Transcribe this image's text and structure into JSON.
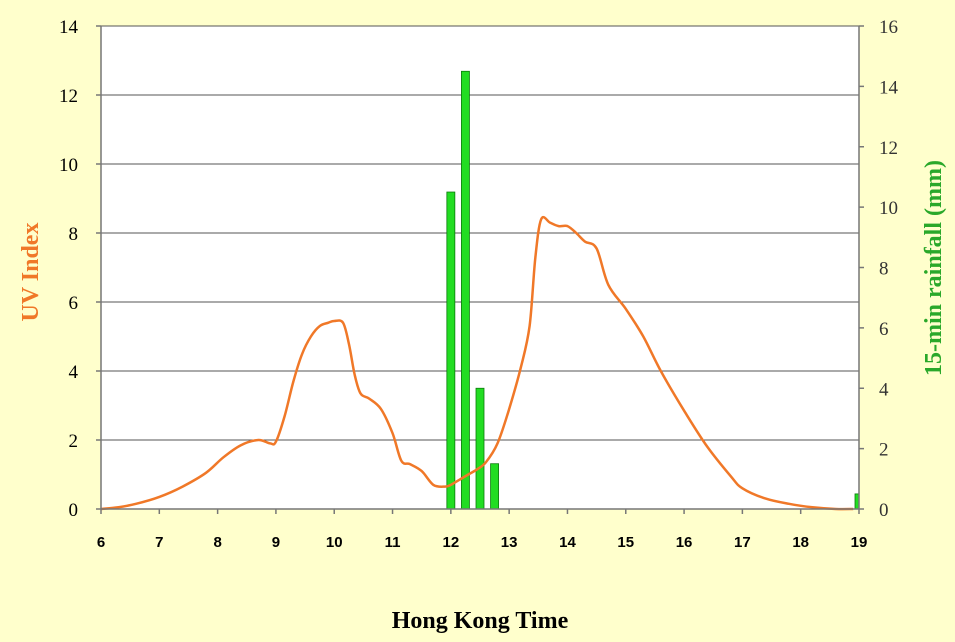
{
  "chart_data": {
    "type": "bar+line",
    "xlabel": "Hong Kong Time",
    "ylabel_left": "UV Index",
    "ylabel_right": "15-min rainfall (mm)",
    "x_ticks": [
      "6",
      "7",
      "8",
      "9",
      "10",
      "11",
      "12",
      "13",
      "14",
      "15",
      "16",
      "17",
      "18",
      "19"
    ],
    "xlim": [
      6,
      19
    ],
    "ylim_left": [
      0,
      14
    ],
    "y_ticks_left": [
      "0",
      "2",
      "4",
      "6",
      "8",
      "10",
      "12",
      "14"
    ],
    "ylim_right": [
      0,
      16
    ],
    "y_ticks_right": [
      "0",
      "2",
      "4",
      "6",
      "8",
      "10",
      "12",
      "14",
      "16"
    ],
    "grid": true,
    "colors": {
      "uv_line": "#f07828",
      "rain_bar": "#22dd22",
      "rain_bar_edge": "#0a7a0a",
      "left_title": "#f07828",
      "right_title": "#2aa82a",
      "plot_bg": "#ffffff",
      "page_bg": "#ffffcc"
    },
    "uv_series": {
      "axis": "left",
      "x": [
        6.0,
        6.3,
        6.6,
        7.0,
        7.4,
        7.8,
        8.1,
        8.4,
        8.7,
        8.9,
        9.0,
        9.15,
        9.3,
        9.45,
        9.6,
        9.75,
        9.9,
        10.0,
        10.15,
        10.25,
        10.35,
        10.45,
        10.6,
        10.8,
        11.0,
        11.15,
        11.3,
        11.5,
        11.7,
        11.9,
        12.0,
        12.15,
        12.3,
        12.45,
        12.6,
        12.8,
        13.0,
        13.2,
        13.35,
        13.45,
        13.55,
        13.7,
        13.85,
        14.0,
        14.15,
        14.3,
        14.5,
        14.7,
        15.0,
        15.3,
        15.6,
        16.0,
        16.4,
        16.8,
        17.0,
        17.4,
        17.8,
        18.2,
        18.6,
        18.9
      ],
      "y": [
        0.0,
        0.05,
        0.15,
        0.35,
        0.65,
        1.05,
        1.5,
        1.85,
        2.0,
        1.9,
        1.95,
        2.7,
        3.7,
        4.5,
        5.0,
        5.3,
        5.4,
        5.45,
        5.4,
        4.8,
        3.9,
        3.35,
        3.2,
        2.9,
        2.2,
        1.4,
        1.3,
        1.1,
        0.7,
        0.65,
        0.7,
        0.85,
        1.0,
        1.15,
        1.35,
        1.9,
        2.9,
        4.1,
        5.3,
        7.3,
        8.4,
        8.3,
        8.2,
        8.2,
        8.0,
        7.75,
        7.55,
        6.5,
        5.8,
        5.0,
        4.0,
        2.85,
        1.8,
        0.95,
        0.6,
        0.3,
        0.15,
        0.05,
        0.0,
        0.0
      ]
    },
    "rain_series": {
      "axis": "right",
      "x": [
        12.0,
        12.25,
        12.5,
        12.75,
        19.0
      ],
      "values": [
        10.5,
        14.5,
        4.0,
        1.5,
        0.5
      ]
    }
  }
}
